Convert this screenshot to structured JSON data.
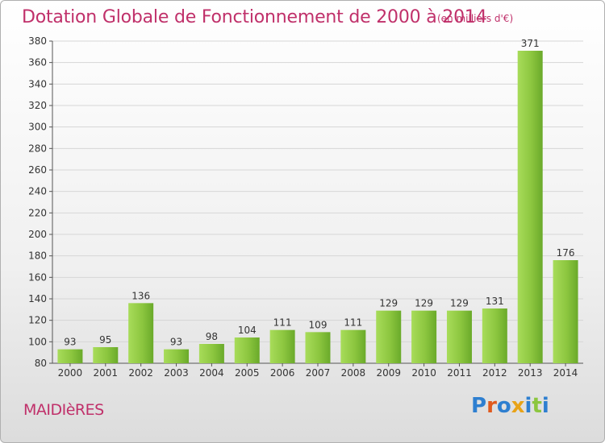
{
  "title": "Dotation Globale de Fonctionnement de 2000 à 2014",
  "unit_note": "(en milliers d'€)",
  "commune": "MAIDIèRES",
  "logo": {
    "text": "Proxiti",
    "colors": [
      "#2e7fd0",
      "#e05a1e",
      "#2e7fd0",
      "#e8a318",
      "#2e7fd0",
      "#8cc63f",
      "#2e7fd0"
    ]
  },
  "colors": {
    "title": "#c0306a",
    "bar_light": "#a8dc5a",
    "bar_dark": "#6aaa2a"
  },
  "chart_data": {
    "type": "bar",
    "title": "Dotation Globale de Fonctionnement de 2000 à 2014",
    "subtitle": "(en milliers d'€)",
    "categories": [
      "2000",
      "2001",
      "2002",
      "2003",
      "2004",
      "2005",
      "2006",
      "2007",
      "2008",
      "2009",
      "2010",
      "2011",
      "2012",
      "2013",
      "2014"
    ],
    "values": [
      93,
      95,
      136,
      93,
      98,
      104,
      111,
      109,
      111,
      129,
      129,
      129,
      131,
      371,
      176
    ],
    "ylim": [
      80,
      380
    ],
    "yticks": [
      80,
      100,
      120,
      140,
      160,
      180,
      200,
      220,
      240,
      260,
      280,
      300,
      320,
      340,
      360,
      380
    ],
    "grid": true,
    "xlabel": "",
    "ylabel": ""
  }
}
